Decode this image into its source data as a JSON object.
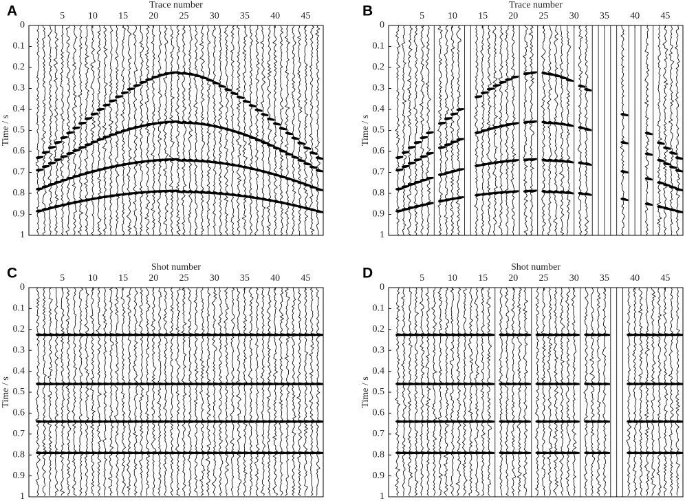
{
  "chart_data": [
    {
      "type": "seismic",
      "panel": "A",
      "xlabel": "Trace number",
      "ylabel": "Time / s",
      "xlim": [
        -0.5,
        47.9
      ],
      "ylim": [
        0,
        1
      ],
      "xticks": [
        5,
        10,
        15,
        20,
        25,
        30,
        35,
        40,
        45
      ],
      "yticks": [
        0,
        0.1,
        0.2,
        0.3,
        0.4,
        0.5,
        0.6,
        0.7,
        0.8,
        0.9,
        1
      ],
      "apex_trace": 24,
      "events": [
        {
          "t0": 0.225,
          "t_trace1": 0.63
        },
        {
          "t0": 0.46,
          "t_trace1": 0.69
        },
        {
          "t0": 0.64,
          "t_trace1": 0.78
        },
        {
          "t0": 0.79,
          "t_trace1": 0.885
        }
      ],
      "missing_traces": []
    },
    {
      "type": "seismic",
      "panel": "B",
      "xlabel": "Trace number",
      "ylabel": "Time / s",
      "xlim": [
        -0.5,
        47.9
      ],
      "ylim": [
        0,
        1
      ],
      "xticks": [
        5,
        10,
        15,
        20,
        25,
        30,
        35,
        40,
        45
      ],
      "yticks": [
        0,
        0.1,
        0.2,
        0.3,
        0.4,
        0.5,
        0.6,
        0.7,
        0.8,
        0.9,
        1
      ],
      "apex_trace": 24,
      "events": [
        {
          "t0": 0.225,
          "t_trace1": 0.63
        },
        {
          "t0": 0.46,
          "t_trace1": 0.69
        },
        {
          "t0": 0.64,
          "t_trace1": 0.78
        },
        {
          "t0": 0.79,
          "t_trace1": 0.885
        }
      ],
      "missing_traces": [
        7,
        12,
        13,
        21,
        24,
        30,
        33,
        34,
        35,
        36,
        37,
        39,
        40,
        41,
        43
      ]
    },
    {
      "type": "seismic",
      "panel": "C",
      "xlabel": "Shot number",
      "ylabel": "Time / s",
      "xlim": [
        -0.5,
        47.9
      ],
      "ylim": [
        0,
        1
      ],
      "xticks": [
        5,
        10,
        15,
        20,
        25,
        30,
        35,
        40,
        45
      ],
      "yticks": [
        0,
        0.1,
        0.2,
        0.3,
        0.4,
        0.5,
        0.6,
        0.7,
        0.8,
        0.9,
        1
      ],
      "events": [
        {
          "t0": 0.225
        },
        {
          "t0": 0.46
        },
        {
          "t0": 0.64
        },
        {
          "t0": 0.79
        }
      ],
      "missing_traces": []
    },
    {
      "type": "seismic",
      "panel": "D",
      "xlabel": "Shot number",
      "ylabel": "Time / s",
      "xlim": [
        -0.5,
        47.9
      ],
      "ylim": [
        0,
        1
      ],
      "xticks": [
        5,
        10,
        15,
        20,
        25,
        30,
        35,
        40,
        45
      ],
      "yticks": [
        0,
        0.1,
        0.2,
        0.3,
        0.4,
        0.5,
        0.6,
        0.7,
        0.8,
        0.9,
        1
      ],
      "events": [
        {
          "t0": 0.225
        },
        {
          "t0": 0.46
        },
        {
          "t0": 0.64
        },
        {
          "t0": 0.79
        }
      ],
      "missing_traces": [
        17,
        23,
        31,
        36,
        37,
        38
      ]
    }
  ]
}
